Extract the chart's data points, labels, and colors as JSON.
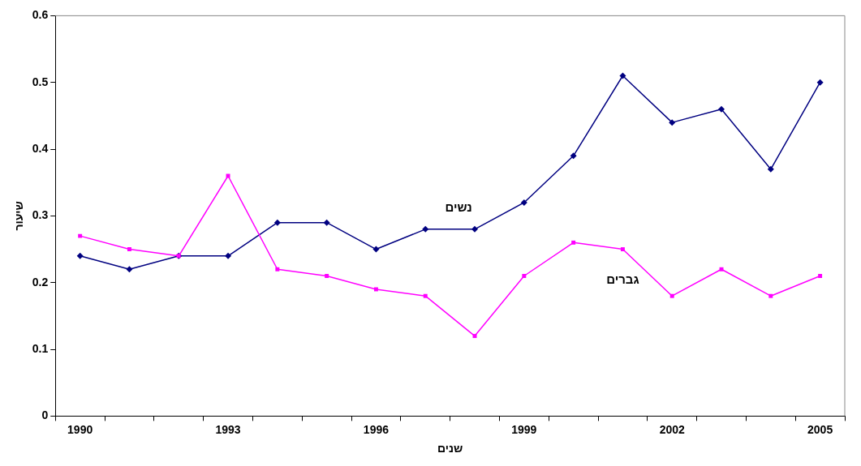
{
  "chart_data": {
    "type": "line",
    "xlabel": "שנים",
    "ylabel": "שיעור",
    "categories": [
      "1990",
      null,
      null,
      "1993",
      null,
      null,
      "1996",
      null,
      null,
      "1999",
      null,
      null,
      "2002",
      null,
      null,
      "2005"
    ],
    "series": [
      {
        "name": "נשים",
        "color": "#000080",
        "marker": "diamond",
        "values": [
          0.24,
          0.22,
          0.24,
          0.24,
          0.29,
          0.29,
          0.25,
          0.28,
          0.28,
          0.32,
          0.39,
          0.51,
          0.44,
          0.46,
          0.37,
          0.5
        ]
      },
      {
        "name": "גברים",
        "color": "#ff00ff",
        "marker": "square",
        "values": [
          0.27,
          0.25,
          0.24,
          0.36,
          0.22,
          0.21,
          0.19,
          0.18,
          0.12,
          0.21,
          0.26,
          0.25,
          0.18,
          0.22,
          0.18,
          0.21
        ]
      }
    ],
    "ylim": [
      0,
      0.6
    ],
    "yticks": [
      0,
      0.1,
      0.2,
      0.3,
      0.4,
      0.5,
      0.6
    ],
    "grid": false,
    "legend": false,
    "line_style": "solid"
  }
}
